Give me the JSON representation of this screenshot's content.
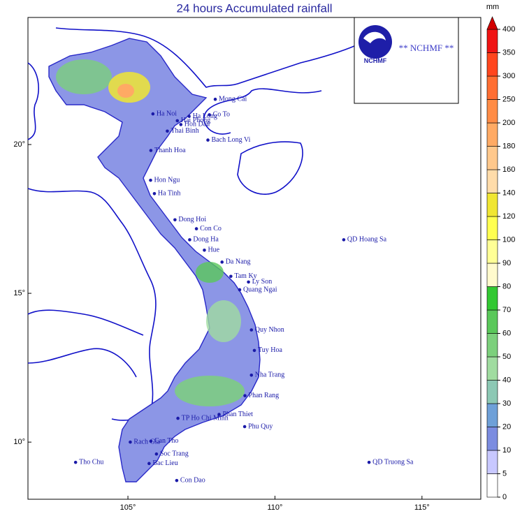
{
  "title": "24 hours Accumulated rainfall",
  "logo": {
    "caption": "** NCHMF **",
    "name": "NCHMF"
  },
  "map_data": {
    "lonlim": [
      101.6,
      117.0
    ],
    "latlim": [
      8.08,
      24.27
    ],
    "lonticks": [
      {
        "value": 105,
        "label": "105°"
      },
      {
        "value": 110,
        "label": "110°"
      },
      {
        "value": 115,
        "label": "115°"
      }
    ],
    "latticks": [
      {
        "value": 20,
        "label": "20°"
      },
      {
        "value": 15,
        "label": "15°"
      },
      {
        "value": 10,
        "label": "10°"
      }
    ],
    "stations": [
      {
        "name": "Mong Cai",
        "lon": 107.97,
        "lat": 21.52
      },
      {
        "name": "Ha Long",
        "lon": 107.08,
        "lat": 20.95
      },
      {
        "name": "Ha Noi",
        "lon": 105.85,
        "lat": 21.03
      },
      {
        "name": "Co To",
        "lon": 107.77,
        "lat": 21.0
      },
      {
        "name": "Hai Phong",
        "lon": 106.68,
        "lat": 20.8
      },
      {
        "name": "Hon Dau",
        "lon": 106.8,
        "lat": 20.67
      },
      {
        "name": "Thai Binh",
        "lon": 106.34,
        "lat": 20.45
      },
      {
        "name": "Bach Long Vi",
        "lon": 107.72,
        "lat": 20.15
      },
      {
        "name": "Thanh Hoa",
        "lon": 105.78,
        "lat": 19.8
      },
      {
        "name": "Hon Ngu",
        "lon": 105.77,
        "lat": 18.8
      },
      {
        "name": "Ha Tinh",
        "lon": 105.9,
        "lat": 18.35
      },
      {
        "name": "Dong Hoi",
        "lon": 106.6,
        "lat": 17.47
      },
      {
        "name": "Con Co",
        "lon": 107.33,
        "lat": 17.17
      },
      {
        "name": "Dong Ha",
        "lon": 107.1,
        "lat": 16.8
      },
      {
        "name": "QD Hoang Sa",
        "lon": 112.34,
        "lat": 16.8
      },
      {
        "name": "Hue",
        "lon": 107.6,
        "lat": 16.45
      },
      {
        "name": "Da Nang",
        "lon": 108.2,
        "lat": 16.05
      },
      {
        "name": "Tam Ky",
        "lon": 108.5,
        "lat": 15.57
      },
      {
        "name": "Ly Son",
        "lon": 109.1,
        "lat": 15.38
      },
      {
        "name": "Quang Ngai",
        "lon": 108.8,
        "lat": 15.12
      },
      {
        "name": "Quy Nhon",
        "lon": 109.2,
        "lat": 13.77
      },
      {
        "name": "Tuy Hoa",
        "lon": 109.3,
        "lat": 13.08
      },
      {
        "name": "Nha Trang",
        "lon": 109.2,
        "lat": 12.25
      },
      {
        "name": "Phan Rang",
        "lon": 108.98,
        "lat": 11.56
      },
      {
        "name": "Phan Thiet",
        "lon": 108.1,
        "lat": 10.93
      },
      {
        "name": "TP Ho Chi Minh",
        "lon": 106.7,
        "lat": 10.8
      },
      {
        "name": "Phu Quy",
        "lon": 108.97,
        "lat": 10.52
      },
      {
        "name": "Rach Gia",
        "lon": 105.08,
        "lat": 10.0
      },
      {
        "name": "Can Tho",
        "lon": 105.78,
        "lat": 10.03
      },
      {
        "name": "Soc Trang",
        "lon": 105.97,
        "lat": 9.6
      },
      {
        "name": "Tho Chu",
        "lon": 103.22,
        "lat": 9.32
      },
      {
        "name": "QD Truong Sa",
        "lon": 113.2,
        "lat": 9.32
      },
      {
        "name": "Bac Lieu",
        "lon": 105.72,
        "lat": 9.28
      },
      {
        "name": "Con Dao",
        "lon": 106.66,
        "lat": 8.71
      }
    ]
  },
  "colorbar": {
    "unit": "mm",
    "levels": [
      0,
      5,
      10,
      20,
      30,
      40,
      50,
      60,
      70,
      80,
      90,
      100,
      120,
      140,
      160,
      180,
      200,
      250,
      300,
      350,
      400
    ],
    "colors": [
      "#ffffff",
      "#c8c8ff",
      "#7b8ce0",
      "#6ea0d8",
      "#8cc8b4",
      "#a0dca0",
      "#7cd07c",
      "#5ac85a",
      "#32c832",
      "#fffacd",
      "#ffff96",
      "#ffff50",
      "#f0e632",
      "#ffdcaa",
      "#ffc88c",
      "#ffaa64",
      "#ff8c46",
      "#ff6e32",
      "#ff461e",
      "#f01414"
    ],
    "over_color": "#d20000"
  }
}
